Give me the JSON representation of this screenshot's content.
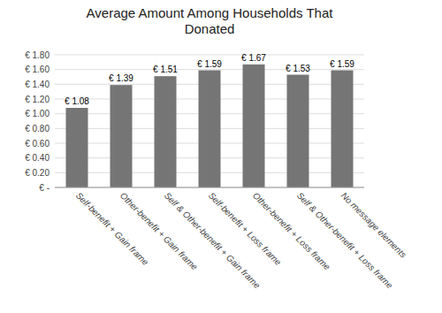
{
  "chart_data": {
    "type": "bar",
    "title": "Average Amount Among Households That\nDonated",
    "categories": [
      "Self-benefit + Gain frame",
      "Other-benefit + Gain frame",
      "Self & Other-benefit + Gain frame",
      "Self-benefit + Loss frame",
      "Other-benefit + Loss frame",
      "Self & Other-benefit + Loss frame",
      "No message elements"
    ],
    "values": [
      1.08,
      1.39,
      1.51,
      1.59,
      1.67,
      1.53,
      1.59
    ],
    "value_labels": [
      "€ 1.08",
      "€ 1.39",
      "€ 1.51",
      "€ 1.59",
      "€ 1.67",
      "€ 1.53",
      "€ 1.59"
    ],
    "data_labels": true,
    "color": "#757575",
    "ylim": [
      0,
      1.8
    ],
    "yticks": [
      {
        "value": 0,
        "label": "€ -"
      },
      {
        "value": 0.2,
        "label": "€ 0.20"
      },
      {
        "value": 0.4,
        "label": "€ 0.40"
      },
      {
        "value": 0.6,
        "label": "€ 0.60"
      },
      {
        "value": 0.8,
        "label": "€ 0.80"
      },
      {
        "value": 1.0,
        "label": "€ 1.00"
      },
      {
        "value": 1.2,
        "label": "€ 1.20"
      },
      {
        "value": 1.4,
        "label": "€ 1.40"
      },
      {
        "value": 1.6,
        "label": "€ 1.60"
      },
      {
        "value": 1.8,
        "label": "€ 1.80"
      }
    ],
    "grid": true
  }
}
